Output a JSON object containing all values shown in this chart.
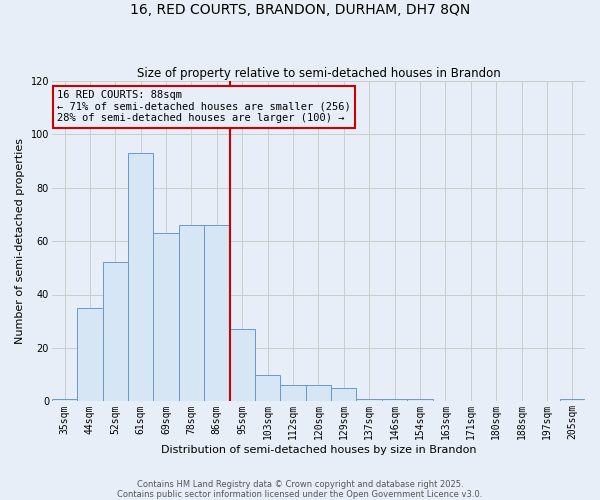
{
  "title": "16, RED COURTS, BRANDON, DURHAM, DH7 8QN",
  "subtitle": "Size of property relative to semi-detached houses in Brandon",
  "xlabel": "Distribution of semi-detached houses by size in Brandon",
  "ylabel": "Number of semi-detached properties",
  "categories": [
    "35sqm",
    "44sqm",
    "52sqm",
    "61sqm",
    "69sqm",
    "78sqm",
    "86sqm",
    "95sqm",
    "103sqm",
    "112sqm",
    "120sqm",
    "129sqm",
    "137sqm",
    "146sqm",
    "154sqm",
    "163sqm",
    "171sqm",
    "180sqm",
    "188sqm",
    "197sqm",
    "205sqm"
  ],
  "values": [
    1,
    35,
    52,
    93,
    63,
    66,
    66,
    27,
    10,
    6,
    6,
    5,
    1,
    1,
    1,
    0,
    0,
    0,
    0,
    0,
    1
  ],
  "bar_color": "#d6e6f5",
  "bar_edge_color": "#6699cc",
  "grid_color": "#cccccc",
  "annotation_text": "16 RED COURTS: 88sqm\n← 71% of semi-detached houses are smaller (256)\n28% of semi-detached houses are larger (100) →",
  "annotation_box_color": "#cc0000",
  "vline_color": "#cc0000",
  "vline_x_index": 6,
  "ylim": [
    0,
    120
  ],
  "yticks": [
    0,
    20,
    40,
    60,
    80,
    100,
    120
  ],
  "footer_line1": "Contains HM Land Registry data © Crown copyright and database right 2025.",
  "footer_line2": "Contains public sector information licensed under the Open Government Licence v3.0.",
  "bg_color": "#e8eef8",
  "plot_bg_color": "#e8eef8",
  "title_fontsize": 10,
  "subtitle_fontsize": 8.5,
  "tick_fontsize": 7,
  "label_fontsize": 8,
  "annotation_fontsize": 7.5,
  "footer_fontsize": 6
}
